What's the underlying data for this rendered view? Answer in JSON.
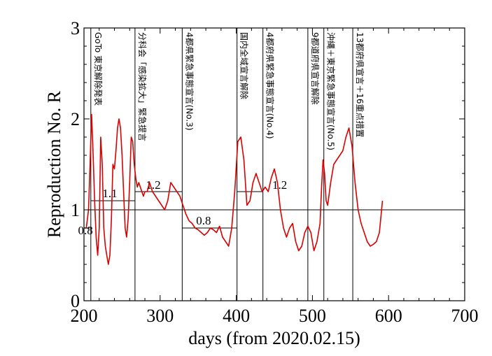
{
  "chart_data": {
    "type": "line",
    "title": "",
    "xlabel": "days   (from 2020.02.15)",
    "ylabel": "Reproduction No.  R",
    "xlim": [
      200,
      700
    ],
    "ylim": [
      0,
      3
    ],
    "xticks": [
      200,
      300,
      400,
      500,
      600,
      700
    ],
    "yticks": [
      0,
      1,
      2,
      3
    ],
    "xtick_labels": [
      "200",
      "300",
      "400",
      "500",
      "600",
      "700"
    ],
    "ytick_labels": [
      "0",
      "1",
      "2",
      "3"
    ],
    "grid": false,
    "reference_line": {
      "y": 1
    },
    "series": [
      {
        "color": "#dd0000",
        "x": [
          200,
          203,
          206,
          208,
          210,
          212,
          214,
          216,
          218,
          220,
          222,
          224,
          226,
          228,
          230,
          232,
          234,
          236,
          238,
          240,
          242,
          244,
          246,
          248,
          250,
          252,
          254,
          256,
          258,
          260,
          262,
          264,
          266,
          268,
          270,
          272,
          274,
          276,
          278,
          280,
          283,
          286,
          290,
          294,
          298,
          302,
          306,
          310,
          314,
          318,
          322,
          326,
          330,
          334,
          338,
          342,
          346,
          350,
          354,
          358,
          362,
          366,
          370,
          374,
          378,
          382,
          386,
          390,
          394,
          398,
          402,
          406,
          410,
          414,
          418,
          422,
          426,
          430,
          434,
          438,
          442,
          446,
          450,
          454,
          458,
          462,
          466,
          470,
          474,
          478,
          482,
          486,
          490,
          494,
          498,
          502,
          506,
          510,
          512,
          514,
          516,
          518,
          520,
          524,
          528,
          532,
          536,
          540,
          544,
          548,
          552,
          556,
          560,
          564,
          568,
          572,
          576,
          580,
          584,
          588,
          592
        ],
        "values": [
          0.8,
          0.8,
          1.0,
          1.5,
          2.05,
          1.6,
          1.1,
          0.7,
          0.5,
          0.8,
          1.8,
          1.5,
          0.8,
          0.6,
          0.5,
          0.4,
          0.5,
          0.9,
          1.5,
          1.45,
          1.65,
          1.9,
          2.0,
          1.9,
          1.6,
          1.2,
          0.8,
          0.7,
          0.9,
          1.3,
          1.8,
          1.75,
          1.5,
          1.35,
          1.25,
          1.3,
          1.25,
          1.2,
          1.15,
          1.2,
          1.2,
          1.3,
          1.2,
          1.15,
          1.1,
          1.05,
          1.0,
          1.1,
          1.3,
          1.25,
          1.2,
          1.15,
          1.05,
          0.95,
          0.88,
          0.85,
          0.8,
          0.78,
          0.75,
          0.72,
          0.75,
          0.8,
          0.78,
          0.75,
          0.82,
          0.7,
          0.65,
          0.6,
          0.8,
          1.2,
          1.75,
          1.8,
          1.55,
          1.05,
          1.1,
          1.3,
          1.4,
          1.3,
          1.2,
          1.25,
          1.2,
          1.35,
          1.45,
          1.3,
          1.0,
          0.8,
          0.7,
          0.8,
          0.85,
          0.65,
          0.55,
          0.6,
          0.75,
          0.82,
          0.75,
          0.55,
          0.65,
          0.85,
          1.25,
          1.55,
          1.4,
          1.1,
          1.05,
          1.3,
          1.5,
          1.55,
          1.6,
          1.65,
          1.8,
          1.9,
          1.7,
          1.3,
          1.0,
          0.85,
          0.75,
          0.65,
          0.6,
          0.62,
          0.65,
          0.75,
          1.1
        ]
      }
    ],
    "vlines": [
      209,
      267,
      329,
      401,
      435,
      494,
      515,
      553
    ],
    "hsegments": [
      {
        "x1": 200,
        "x2": 209,
        "y": 0.8,
        "label": "0.8",
        "label_x": 202,
        "label_y": 0.73
      },
      {
        "x1": 209,
        "x2": 267,
        "y": 1.1,
        "label": "1.1",
        "label_x": 234,
        "label_y": 1.14
      },
      {
        "x1": 267,
        "x2": 329,
        "y": 1.2,
        "label": "1.2",
        "label_x": 291,
        "label_y": 1.23
      },
      {
        "x1": 329,
        "x2": 401,
        "y": 0.8,
        "label": "0.8",
        "label_x": 357,
        "label_y": 0.84
      },
      {
        "x1": 401,
        "x2": 435,
        "y": 1.2,
        "label": "1.2",
        "label_x": 457,
        "label_y": 1.23
      }
    ],
    "annotations": [
      {
        "x": 209,
        "text": "GoTo 東京解除発表"
      },
      {
        "x": 267,
        "text": "分科会「感染拡大」緊急提言"
      },
      {
        "x": 329,
        "text": "4都県緊急事態宣言(No.3)"
      },
      {
        "x": 401,
        "text": "国内全域宣言解除"
      },
      {
        "x": 435,
        "text": "4都府県緊急事態宣言(No.4)"
      },
      {
        "x": 494,
        "text": "9都道府県宣言解除"
      },
      {
        "x": 515,
        "text": "沖縄＋東京緊急事態宣言(No.5)"
      },
      {
        "x": 553,
        "text": "13都府県宣言＋16重点措置"
      }
    ]
  }
}
